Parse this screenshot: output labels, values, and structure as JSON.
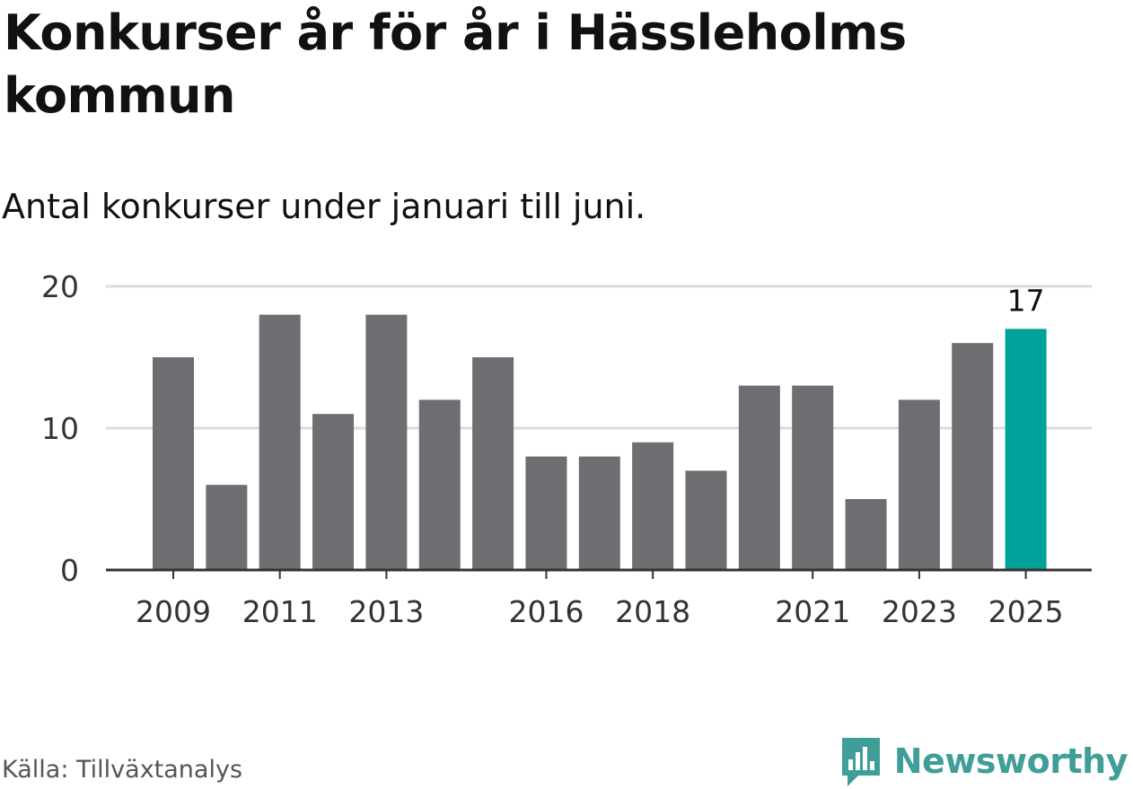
{
  "title": "Konkurser år för år i Hässleholms kommun",
  "subtitle": "Antal konkurser under januari till juni.",
  "source": "Källa: Tillväxtanalys",
  "brand": {
    "name": "Newsworthy",
    "color": "#3f9e98",
    "icon": "newsworthy-logo-icon"
  },
  "colors": {
    "bar": "#6e6d72",
    "highlight": "#00a19a",
    "grid": "#dcdcdc",
    "axis": "#333333",
    "text": "#333333"
  },
  "chart_data": {
    "type": "bar",
    "categories": [
      "2009",
      "2010",
      "2011",
      "2012",
      "2013",
      "2014",
      "2015",
      "2016",
      "2017",
      "2018",
      "2019",
      "2020",
      "2021",
      "2022",
      "2023",
      "2024",
      "2025"
    ],
    "values": [
      15,
      6,
      18,
      11,
      18,
      12,
      15,
      8,
      8,
      9,
      7,
      13,
      13,
      5,
      12,
      16,
      17
    ],
    "x_tick_labels": [
      "2009",
      "2011",
      "2013",
      "2016",
      "2018",
      "2021",
      "2023",
      "2025"
    ],
    "y_ticks": [
      0,
      10,
      20
    ],
    "ylim": [
      0,
      20
    ],
    "grid": true,
    "highlight": {
      "category": "2025",
      "label": "17"
    },
    "xlabel": "",
    "ylabel": ""
  }
}
